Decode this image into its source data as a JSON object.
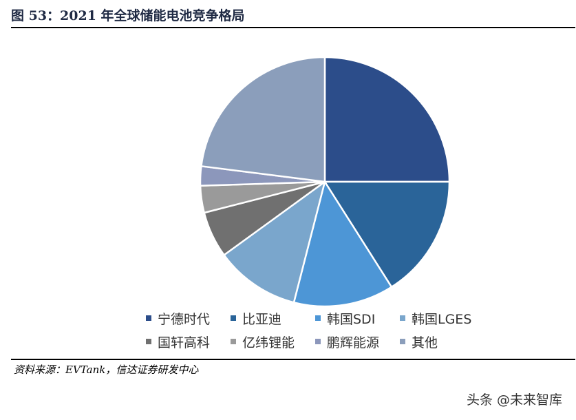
{
  "figure": {
    "title": "图 53：2021 年全球储能电池竞争格局"
  },
  "source": "资料来源：EVTank，信达证券研发中心",
  "watermark": "头条 @未来智库",
  "chart_data": {
    "type": "pie",
    "title": "",
    "legend_placement": "bottom",
    "start_angle": "12 o'clock, clockwise",
    "categories": [
      "宁德时代",
      "比亚迪",
      "韩国SDI",
      "韩国LGES",
      "国轩高科",
      "亿纬锂能",
      "鹏辉能源",
      "其他"
    ],
    "values": [
      25,
      16,
      13,
      11,
      6,
      3.5,
      2.5,
      23
    ],
    "unit": "%",
    "colors": [
      "#2c4d8a",
      "#2a6499",
      "#4d96d6",
      "#7aa6cc",
      "#707070",
      "#9a9a9a",
      "#8c97bb",
      "#8b9ebb"
    ]
  }
}
